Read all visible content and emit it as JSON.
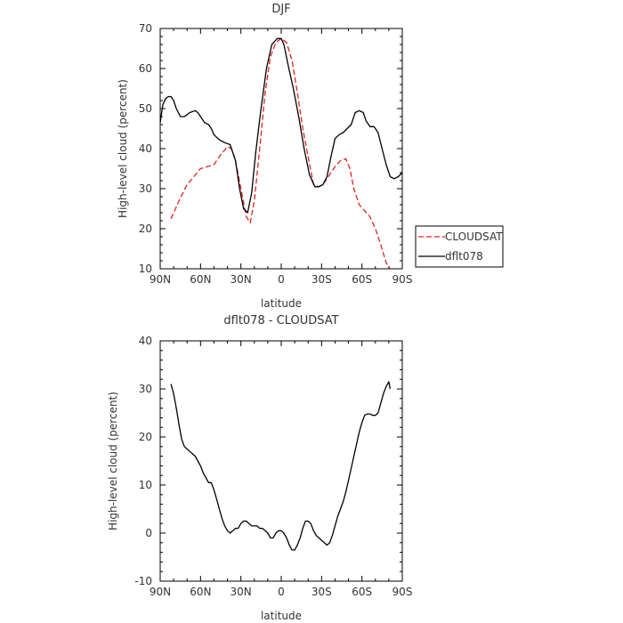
{
  "chart_data": [
    {
      "type": "line",
      "title": "DJF",
      "xlabel": "latitude",
      "ylabel": "High-level cloud (percent)",
      "xlim": [
        90,
        -90
      ],
      "ylim": [
        10,
        70
      ],
      "x_ticks": [
        {
          "value": 90,
          "label": "90N"
        },
        {
          "value": 60,
          "label": "60N"
        },
        {
          "value": 30,
          "label": "30N"
        },
        {
          "value": 0,
          "label": "0"
        },
        {
          "value": -30,
          "label": "30S"
        },
        {
          "value": -60,
          "label": "60S"
        },
        {
          "value": -90,
          "label": "90S"
        }
      ],
      "y_ticks": [
        10,
        20,
        30,
        40,
        50,
        60,
        70
      ],
      "legend_position": "right",
      "series": [
        {
          "name": "CLOUDSAT",
          "color": "#dd2222",
          "dash": "dashed",
          "x": [
            82,
            76,
            70,
            65,
            60,
            55,
            50,
            45,
            40,
            37,
            34,
            30,
            26,
            23,
            20,
            16,
            12,
            8,
            4,
            0,
            -4,
            -8,
            -12,
            -16,
            -20,
            -24,
            -28,
            -32,
            -36,
            -40,
            -44,
            -48,
            -51,
            -54,
            -58,
            -62,
            -66,
            -70,
            -74,
            -78,
            -81
          ],
          "y": [
            22.5,
            27,
            31,
            33,
            35,
            35.5,
            36,
            38.5,
            40.5,
            40,
            37,
            30,
            23,
            21.5,
            27,
            40,
            54,
            63,
            66.5,
            67.5,
            66.5,
            62,
            54,
            45,
            38,
            31,
            30.5,
            31.5,
            33.5,
            35.5,
            37,
            37.5,
            35,
            30,
            26,
            24.5,
            23,
            20,
            16,
            11.5,
            9
          ]
        },
        {
          "name": "dflt078",
          "color": "#000000",
          "dash": "solid",
          "x": [
            90,
            88,
            86,
            84,
            82,
            80,
            78,
            75,
            72,
            70,
            68,
            64,
            62,
            60,
            57,
            54,
            52,
            50,
            47,
            45,
            42,
            38,
            34,
            31,
            28,
            25,
            22,
            19,
            15,
            11,
            7,
            3,
            0,
            -2,
            -5,
            -9,
            -13,
            -17,
            -21,
            -25,
            -28,
            -31,
            -34,
            -37,
            -40,
            -43,
            -46,
            -49,
            -52,
            -55,
            -58,
            -61,
            -63,
            -66,
            -69,
            -72,
            -75,
            -78,
            -81,
            -84,
            -87,
            -90
          ],
          "y": [
            46.5,
            51,
            52.5,
            53,
            53,
            52,
            50,
            48,
            48,
            48.5,
            49,
            49.5,
            49,
            48,
            46.5,
            46,
            45,
            43.5,
            42.5,
            42,
            41.5,
            41,
            37,
            30,
            25,
            24,
            29,
            39,
            50,
            60,
            66,
            67.5,
            67.5,
            66,
            61,
            55,
            48,
            40,
            33.5,
            30.5,
            30.5,
            31,
            33,
            38,
            42.5,
            43.5,
            44,
            45,
            46,
            49,
            49.5,
            49,
            47,
            45.5,
            45.5,
            44,
            40,
            36,
            33,
            32.5,
            33,
            34
          ]
        }
      ]
    },
    {
      "type": "line",
      "title": "dflt078 - CLOUDSAT",
      "xlabel": "latitude",
      "ylabel": "High-level cloud (percent)",
      "xlim": [
        90,
        -90
      ],
      "ylim": [
        -10,
        40
      ],
      "x_ticks": [
        {
          "value": 90,
          "label": "90N"
        },
        {
          "value": 60,
          "label": "60N"
        },
        {
          "value": 30,
          "label": "30N"
        },
        {
          "value": 0,
          "label": "0"
        },
        {
          "value": -30,
          "label": "30S"
        },
        {
          "value": -60,
          "label": "60S"
        },
        {
          "value": -90,
          "label": "90S"
        }
      ],
      "y_ticks": [
        -10,
        0,
        10,
        20,
        30,
        40
      ],
      "series": [
        {
          "name": "dflt078 - CLOUDSAT",
          "color": "#000000",
          "dash": "solid",
          "x": [
            82,
            80,
            78,
            76,
            74,
            72,
            70,
            68,
            66,
            64,
            62,
            60,
            58,
            56,
            54,
            52,
            50,
            48,
            46,
            44,
            42,
            40,
            38,
            36,
            34,
            32,
            30,
            28,
            26,
            24,
            22,
            20,
            18,
            16,
            14,
            12,
            10,
            8,
            6,
            4,
            2,
            0,
            -2,
            -4,
            -6,
            -8,
            -10,
            -12,
            -14,
            -16,
            -18,
            -20,
            -22,
            -24,
            -26,
            -28,
            -30,
            -32,
            -34,
            -36,
            -38,
            -40,
            -42,
            -44,
            -46,
            -48,
            -50,
            -52,
            -54,
            -56,
            -58,
            -60,
            -62,
            -64,
            -66,
            -68,
            -70,
            -72,
            -74,
            -76,
            -78,
            -80,
            -81
          ],
          "y": [
            31,
            29,
            26,
            22.5,
            19.5,
            18,
            17.5,
            17,
            16.5,
            16,
            15,
            14,
            12.5,
            11.5,
            10.5,
            10.5,
            9,
            7,
            5,
            3,
            1.5,
            0.5,
            0,
            0.5,
            1,
            1,
            2,
            2.5,
            2.5,
            2,
            1.5,
            1.5,
            1.5,
            1,
            1,
            0.5,
            0,
            -1,
            -1,
            0,
            0.5,
            0.5,
            0,
            -1,
            -2.5,
            -3.5,
            -3.5,
            -2.5,
            -1,
            1,
            2.5,
            2.5,
            2,
            0.5,
            -0.5,
            -1,
            -1.5,
            -2,
            -2.5,
            -2,
            -0.5,
            1.5,
            3.5,
            5,
            6.5,
            8.5,
            11,
            13.5,
            16,
            18.5,
            21,
            23,
            24.5,
            24.8,
            24.8,
            24.5,
            24.5,
            25,
            27,
            29,
            30.5,
            31.5,
            30
          ]
        }
      ]
    }
  ]
}
